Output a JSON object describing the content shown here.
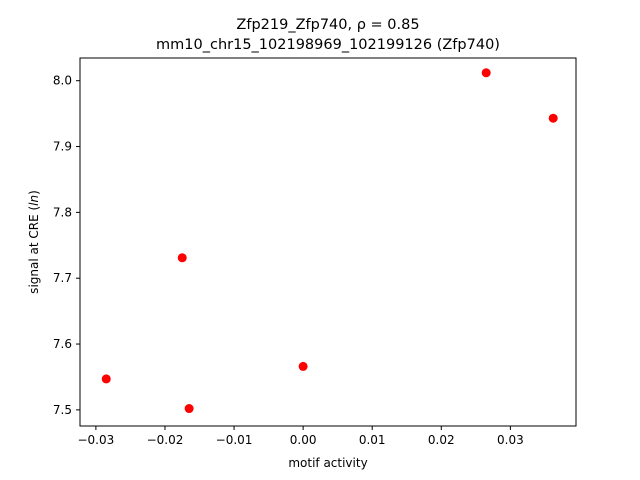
{
  "chart_data": {
    "type": "scatter",
    "title_line1": "Zfp219_Zfp740, ρ = 0.85",
    "title_line2": "mm10_chr15_102198969_102199126 (Zfp740)",
    "xlabel": "motif activity",
    "ylabel": "signal at CRE (ln)",
    "xlim": [
      -0.0323,
      0.0395
    ],
    "ylim": [
      7.4755,
      8.0345
    ],
    "xticks": [
      -0.03,
      -0.02,
      -0.01,
      0.0,
      0.01,
      0.02,
      0.03
    ],
    "xtick_labels": [
      "−0.03",
      "−0.02",
      "−0.01",
      "0.00",
      "0.01",
      "0.02",
      "0.03"
    ],
    "yticks": [
      7.5,
      7.6,
      7.7,
      7.8,
      7.9,
      8.0
    ],
    "ytick_labels": [
      "7.5",
      "7.6",
      "7.7",
      "7.8",
      "7.9",
      "8.0"
    ],
    "grid": false,
    "marker_color": "#ff0000",
    "points": [
      {
        "x": -0.0285,
        "y": 7.547
      },
      {
        "x": -0.0175,
        "y": 7.731
      },
      {
        "x": -0.0165,
        "y": 7.502
      },
      {
        "x": 0.0,
        "y": 7.566
      },
      {
        "x": 0.0265,
        "y": 8.012
      },
      {
        "x": 0.0362,
        "y": 7.943
      }
    ]
  }
}
